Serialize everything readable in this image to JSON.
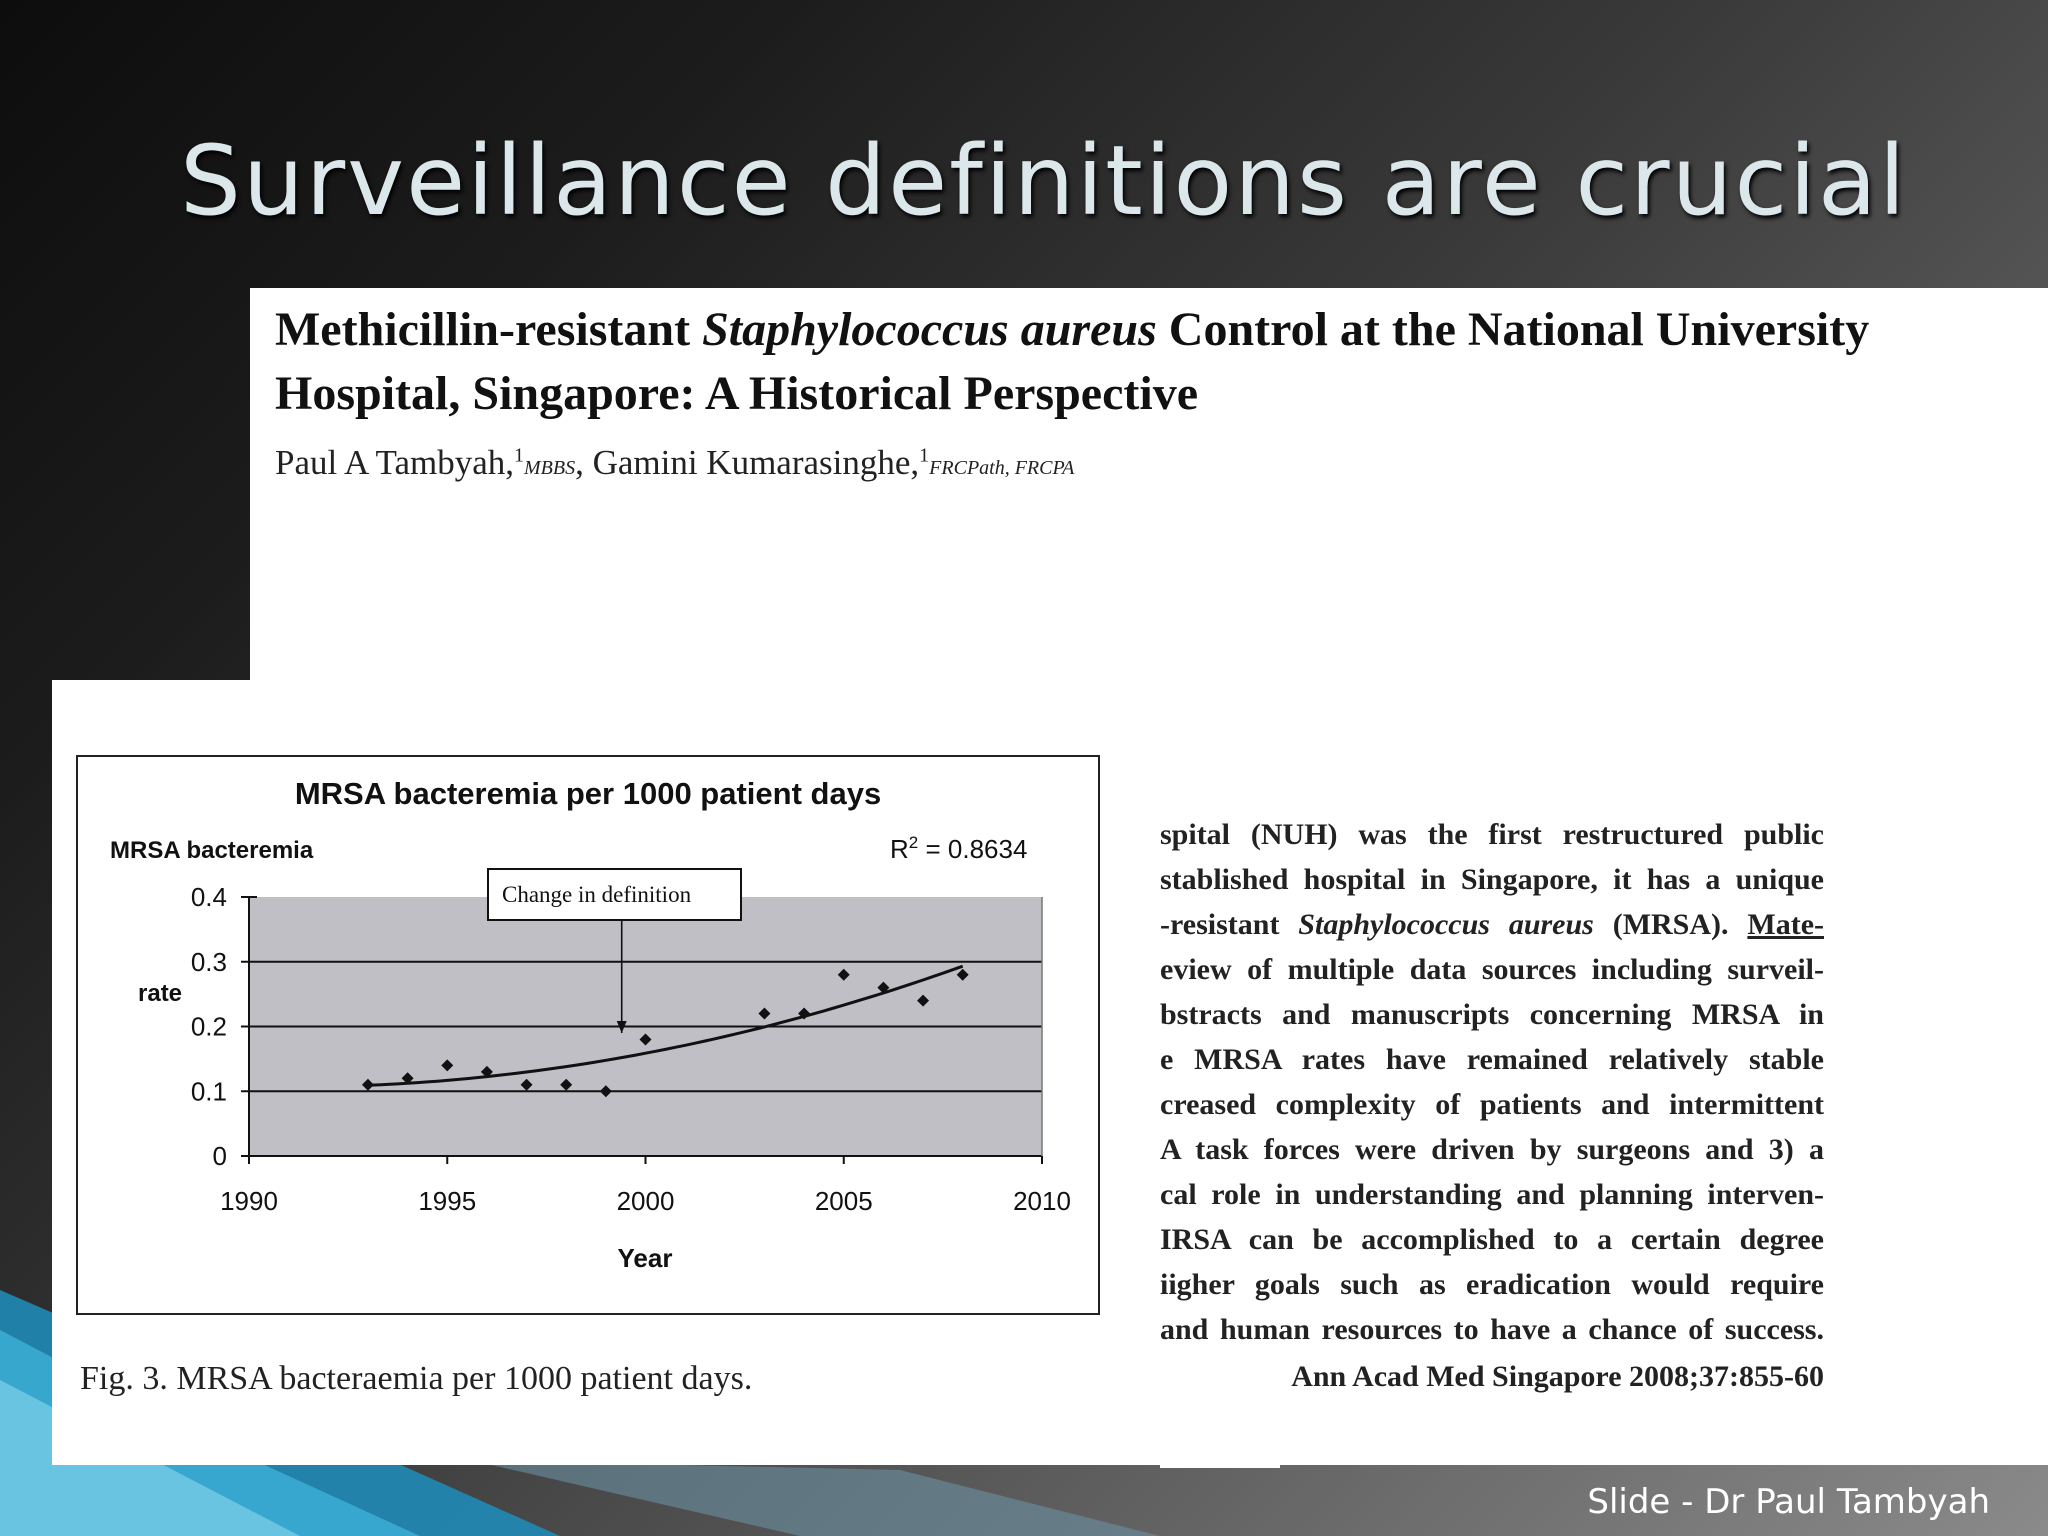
{
  "slide": {
    "title": "Surveillance definitions are crucial",
    "footer": "Slide - Dr Paul Tambyah"
  },
  "article": {
    "title_part1": "Methicillin-resistant ",
    "title_italic": "Staphylococcus aureus",
    "title_part2": " Control at the National University Hospital, Singapore: A Historical Perspective",
    "author1": "Paul A Tambyah,",
    "author1_sup": "1",
    "author1_cred": "MBBS",
    "author2": ", Gamini Kumarasinghe,",
    "author2_sup": "1",
    "author2_cred": "FRCPath, FRCPA",
    "caption": "Fig. 3. MRSA bacteraemia per 1000 patient days.",
    "abstract_lines": [
      "spital (NUH) was the first restructured public",
      "stablished hospital in Singapore, it has a unique",
      "-resistant |Staphylococcus aureus| (MRSA). |Mate-",
      "eview of multiple data sources including surveil-",
      "bstracts and manuscripts concerning MRSA in",
      "e MRSA rates have remained relatively stable",
      "creased complexity of patients and intermittent",
      "A task forces were driven by surgeons and 3) a",
      "cal role in understanding and planning interven-",
      "IRSA can be accomplished to a certain degree",
      "iigher goals such as eradication would require",
      "and human resources to have a chance of success."
    ],
    "abstract_line3": {
      "pre": "-resistant ",
      "italic": "Staphylococcus aureus",
      "mid": " (MRSA). ",
      "underlined": "Mate-"
    },
    "citation": "Ann Acad Med Singapore 2008;37:855-60"
  },
  "chart_data": {
    "type": "scatter",
    "title": "MRSA bacteremia per 1000 patient days",
    "ylabel_line1": "MRSA bacteremia",
    "ylabel_line2": "rate",
    "xlabel": "Year",
    "annotation": "Change in definition",
    "annotation_x": 1999.4,
    "r_squared_label": "R",
    "r_squared_sup": "2",
    "r_squared_value": " = 0.8634",
    "xlim": [
      1990,
      2010
    ],
    "ylim": [
      0,
      0.4
    ],
    "xticks": [
      1990,
      1995,
      2000,
      2005,
      2010
    ],
    "yticks": [
      0,
      0.1,
      0.2,
      0.3,
      0.4
    ],
    "x": [
      1993,
      1994,
      1995,
      1996,
      1997,
      1998,
      1999,
      2000,
      2003,
      2004,
      2005,
      2006,
      2007,
      2008
    ],
    "y": [
      0.11,
      0.12,
      0.14,
      0.13,
      0.11,
      0.11,
      0.1,
      0.18,
      0.22,
      0.22,
      0.28,
      0.26,
      0.24,
      0.28
    ],
    "trendline": "polynomial",
    "plot_bg": "#c0bfc6"
  }
}
